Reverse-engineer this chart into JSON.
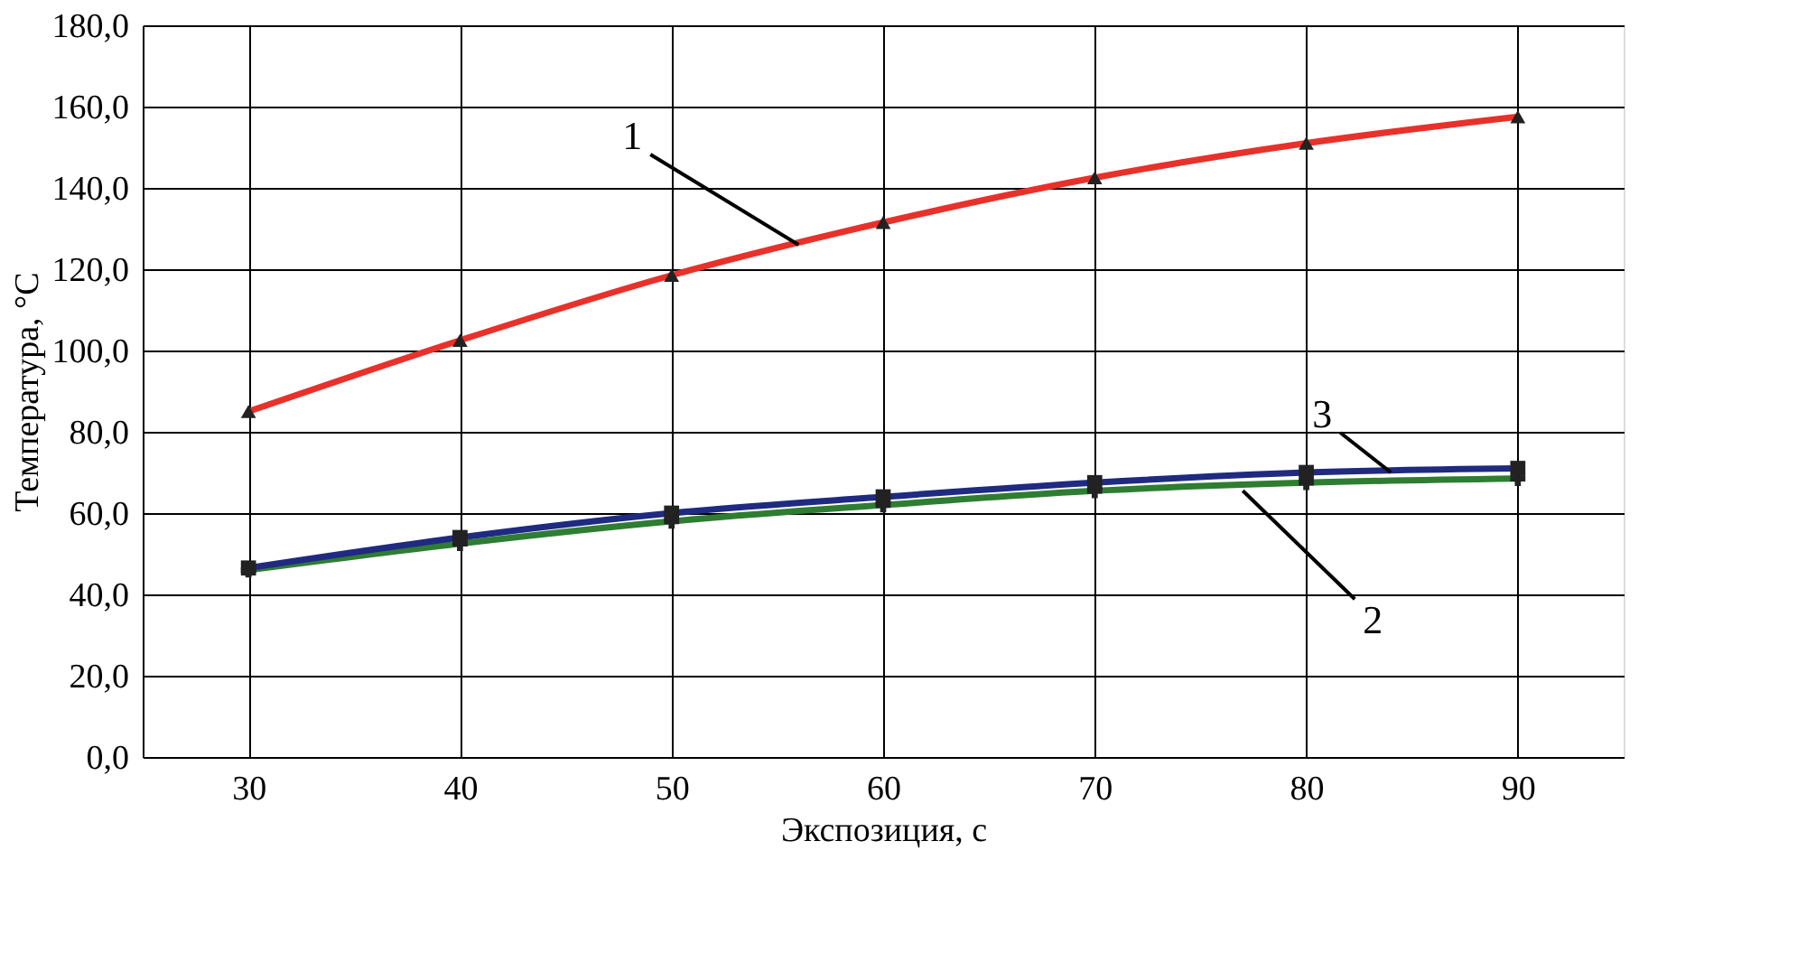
{
  "chart_data": {
    "type": "line",
    "xlabel": "Экспозиция, с",
    "ylabel": "Температура, °С",
    "x": [
      30,
      40,
      50,
      60,
      70,
      80,
      90
    ],
    "series": [
      {
        "color": "#e8312a",
        "marker": "triangle",
        "values": [
          85,
          102.5,
          118.5,
          131.5,
          142.5,
          151,
          157.5
        ]
      },
      {
        "color": "#2e7d32",
        "marker": "cross",
        "values": [
          46,
          52.5,
          58,
          62,
          65.5,
          67.5,
          68.5
        ]
      },
      {
        "color": "#1f2a80",
        "marker": "square",
        "values": [
          46.5,
          54,
          60,
          64,
          67.5,
          70,
          71
        ]
      }
    ],
    "xlim": [
      25,
      95
    ],
    "xticks": [
      30,
      40,
      50,
      60,
      70,
      80,
      90
    ],
    "ylim": [
      0,
      180
    ],
    "yticks": [
      {
        "value": 0,
        "label": "0,0"
      },
      {
        "value": 20,
        "label": "20,0"
      },
      {
        "value": 40,
        "label": "40,0"
      },
      {
        "value": 60,
        "label": "60,0"
      },
      {
        "value": 80,
        "label": "80,0"
      },
      {
        "value": 100,
        "label": "100,0"
      },
      {
        "value": 120,
        "label": "120,0"
      },
      {
        "value": 140,
        "label": "140,0"
      },
      {
        "value": 160,
        "label": "160,0"
      },
      {
        "value": 180,
        "label": "180,0"
      }
    ],
    "grid": true,
    "line_style": "solid",
    "annotations": [
      {
        "text": "1",
        "x": 56,
        "y": 126
      },
      {
        "text": "2",
        "x": 77,
        "y": 65.5
      },
      {
        "text": "3",
        "x": 84,
        "y": 70
      }
    ]
  }
}
